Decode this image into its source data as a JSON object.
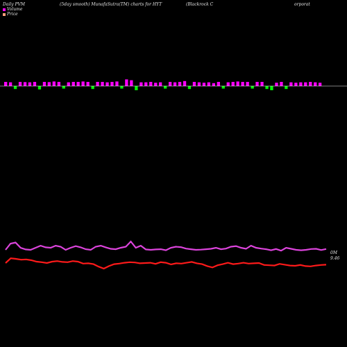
{
  "header": {
    "part1": "Daily PVM",
    "part2": "(5day smooth) MunafaSutra(TM) charts for HYT",
    "part3": "(Blackrock C",
    "part4": "orporat"
  },
  "legend": [
    {
      "label": "Volume",
      "color": "#ff00ff"
    },
    {
      "label": "Price",
      "color": "#ffa07a"
    }
  ],
  "colors": {
    "bar_up": "#ff00ff",
    "bar_down": "#00ff00",
    "volume_line": "#dd44dd",
    "price_line": "#ff1a1a"
  },
  "chart_data": {
    "type": "bar",
    "title": "Daily PVM (5day smooth) MunafaSutra(TM) charts for HYT (Blackrock Corporat",
    "volume_bars": {
      "directions": [
        "u",
        "u",
        "d",
        "u",
        "u",
        "u",
        "u",
        "d",
        "u",
        "u",
        "u",
        "u",
        "d",
        "u",
        "u",
        "u",
        "u",
        "u",
        "d",
        "u",
        "u",
        "u",
        "u",
        "u",
        "d",
        "u",
        "u",
        "d",
        "u",
        "u",
        "u",
        "u",
        "u",
        "d",
        "u",
        "u",
        "u",
        "u",
        "d",
        "u",
        "u",
        "u",
        "u",
        "u",
        "u",
        "d",
        "u",
        "u",
        "u",
        "u",
        "u",
        "d",
        "u",
        "u",
        "d",
        "d",
        "u",
        "u",
        "d",
        "u",
        "u",
        "u",
        "u",
        "u",
        "u",
        "u"
      ],
      "heights": [
        1.0,
        0.9,
        0.7,
        1.0,
        0.95,
        0.9,
        1.0,
        0.8,
        1.0,
        0.95,
        1.1,
        1.0,
        0.6,
        0.9,
        1.0,
        1.0,
        1.1,
        1.0,
        0.7,
        1.0,
        1.0,
        0.9,
        1.0,
        1.1,
        0.6,
        1.6,
        1.4,
        1.0,
        0.9,
        0.9,
        1.0,
        0.8,
        0.9,
        0.6,
        1.0,
        0.9,
        1.0,
        1.2,
        0.7,
        1.0,
        0.9,
        0.8,
        0.9,
        0.7,
        1.0,
        0.6,
        0.9,
        1.0,
        1.1,
        1.0,
        1.0,
        0.6,
        1.0,
        1.0,
        0.7,
        1.0,
        0.8,
        1.0,
        0.7,
        0.9,
        0.8,
        0.9,
        0.9,
        1.0,
        0.9,
        0.8
      ]
    },
    "volume_line": [
      4,
      7,
      7.5,
      5,
      4.2,
      4,
      5,
      6,
      5.2,
      5,
      6,
      5.5,
      4,
      5,
      5.8,
      5.2,
      4.3,
      4,
      5.5,
      6,
      5.2,
      4.5,
      4.3,
      5,
      5.5,
      8,
      5,
      6,
      4.2,
      4,
      4.2,
      4.3,
      3.8,
      5,
      5.5,
      5.3,
      4.6,
      4.3,
      4,
      4.1,
      4.3,
      4.5,
      5,
      4.3,
      4.6,
      5.5,
      5.8,
      5,
      4.5,
      6,
      5,
      4.6,
      4.3,
      3.8,
      4.4,
      3.6,
      5,
      4.5,
      4,
      3.8,
      4,
      4.4,
      4.5,
      3.9,
      4.4
    ],
    "price_line": [
      2.5,
      4.2,
      4,
      3.7,
      3.8,
      3.5,
      3,
      2.8,
      2.5,
      3,
      3.2,
      2.9,
      2.8,
      3.2,
      3,
      2.3,
      2.4,
      2.1,
      1.2,
      0.5,
      1.4,
      2.1,
      2.3,
      2.6,
      2.8,
      2.7,
      2.4,
      2.5,
      2.6,
      2.2,
      2.8,
      2.6,
      2,
      2.4,
      2.3,
      2.6,
      2.9,
      2.4,
      2.1,
      1.4,
      0.9,
      1.7,
      2.1,
      2.6,
      2.1,
      2.3,
      2.6,
      2.3,
      2.4,
      2.5,
      1.8,
      1.7,
      1.6,
      2.2,
      1.9,
      1.6,
      1.5,
      1.8,
      1.4,
      1.3,
      1.6,
      1.8,
      1.9
    ],
    "annotations": [
      "0M",
      "9.46"
    ]
  }
}
